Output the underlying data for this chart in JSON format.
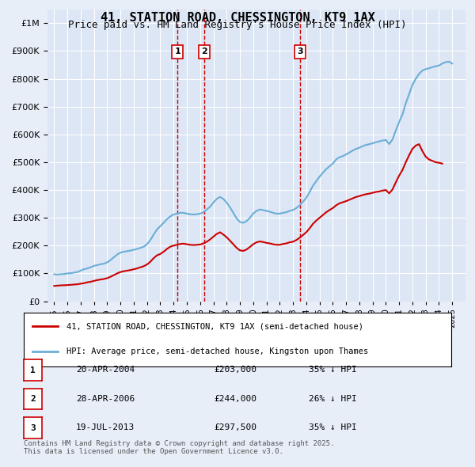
{
  "title": "41, STATION ROAD, CHESSINGTON, KT9 1AX",
  "subtitle": "Price paid vs. HM Land Registry's House Price Index (HPI)",
  "background_color": "#e8eef8",
  "plot_bg_color": "#dce6f5",
  "legend_line1": "41, STATION ROAD, CHESSINGTON, KT9 1AX (semi-detached house)",
  "legend_line2": "HPI: Average price, semi-detached house, Kingston upon Thames",
  "footer": "Contains HM Land Registry data © Crown copyright and database right 2025.\nThis data is licensed under the Open Government Licence v3.0.",
  "transactions": [
    {
      "num": 1,
      "date": "20-APR-2004",
      "price": 203000,
      "hpi_diff": "35% ↓ HPI",
      "year": 2004.3
    },
    {
      "num": 2,
      "date": "28-APR-2006",
      "price": 244000,
      "hpi_diff": "26% ↓ HPI",
      "year": 2006.3
    },
    {
      "num": 3,
      "date": "19-JUL-2013",
      "price": 297500,
      "hpi_diff": "35% ↓ HPI",
      "year": 2013.55
    }
  ],
  "hpi_color": "#6baed6",
  "price_color": "#cc0000",
  "vline_color": "#cc0000",
  "ylim": [
    0,
    1050000
  ],
  "yticks": [
    0,
    100000,
    200000,
    300000,
    400000,
    500000,
    600000,
    700000,
    800000,
    900000,
    1000000
  ],
  "xlim": [
    1994.5,
    2026.0
  ],
  "hpi_data": {
    "years": [
      1995,
      1995.25,
      1995.5,
      1995.75,
      1996,
      1996.25,
      1996.5,
      1996.75,
      1997,
      1997.25,
      1997.5,
      1997.75,
      1998,
      1998.25,
      1998.5,
      1998.75,
      1999,
      1999.25,
      1999.5,
      1999.75,
      2000,
      2000.25,
      2000.5,
      2000.75,
      2001,
      2001.25,
      2001.5,
      2001.75,
      2002,
      2002.25,
      2002.5,
      2002.75,
      2003,
      2003.25,
      2003.5,
      2003.75,
      2004,
      2004.25,
      2004.5,
      2004.75,
      2005,
      2005.25,
      2005.5,
      2005.75,
      2006,
      2006.25,
      2006.5,
      2006.75,
      2007,
      2007.25,
      2007.5,
      2007.75,
      2008,
      2008.25,
      2008.5,
      2008.75,
      2009,
      2009.25,
      2009.5,
      2009.75,
      2010,
      2010.25,
      2010.5,
      2010.75,
      2011,
      2011.25,
      2011.5,
      2011.75,
      2012,
      2012.25,
      2012.5,
      2012.75,
      2013,
      2013.25,
      2013.5,
      2013.75,
      2014,
      2014.25,
      2014.5,
      2014.75,
      2015,
      2015.25,
      2015.5,
      2015.75,
      2016,
      2016.25,
      2016.5,
      2016.75,
      2017,
      2017.25,
      2017.5,
      2017.75,
      2018,
      2018.25,
      2018.5,
      2018.75,
      2019,
      2019.25,
      2019.5,
      2019.75,
      2020,
      2020.25,
      2020.5,
      2020.75,
      2021,
      2021.25,
      2021.5,
      2021.75,
      2022,
      2022.25,
      2022.5,
      2022.75,
      2023,
      2023.25,
      2023.5,
      2023.75,
      2024,
      2024.25,
      2024.5,
      2024.75,
      2025
    ],
    "values": [
      97000,
      96000,
      97000,
      98000,
      100000,
      101000,
      103000,
      105000,
      110000,
      115000,
      118000,
      122000,
      127000,
      130000,
      133000,
      135000,
      140000,
      148000,
      158000,
      168000,
      175000,
      178000,
      180000,
      182000,
      185000,
      188000,
      192000,
      196000,
      205000,
      220000,
      240000,
      258000,
      270000,
      282000,
      295000,
      305000,
      312000,
      315000,
      318000,
      318000,
      315000,
      313000,
      312000,
      313000,
      315000,
      320000,
      330000,
      340000,
      355000,
      368000,
      375000,
      368000,
      355000,
      338000,
      318000,
      298000,
      285000,
      282000,
      288000,
      300000,
      315000,
      325000,
      330000,
      328000,
      325000,
      322000,
      318000,
      315000,
      315000,
      318000,
      320000,
      325000,
      328000,
      335000,
      345000,
      358000,
      372000,
      392000,
      415000,
      432000,
      448000,
      462000,
      475000,
      485000,
      495000,
      510000,
      518000,
      522000,
      528000,
      535000,
      542000,
      548000,
      552000,
      558000,
      562000,
      565000,
      568000,
      572000,
      575000,
      578000,
      580000,
      565000,
      582000,
      615000,
      645000,
      672000,
      712000,
      745000,
      778000,
      800000,
      818000,
      830000,
      835000,
      838000,
      842000,
      845000,
      848000,
      855000,
      860000,
      862000,
      855000
    ]
  },
  "price_data": {
    "years": [
      1995,
      1995.25,
      1995.5,
      1995.75,
      1996,
      1996.25,
      1996.5,
      1996.75,
      1997,
      1997.25,
      1997.5,
      1997.75,
      1998,
      1998.25,
      1998.5,
      1998.75,
      1999,
      1999.25,
      1999.5,
      1999.75,
      2000,
      2000.25,
      2000.5,
      2000.75,
      2001,
      2001.25,
      2001.5,
      2001.75,
      2002,
      2002.25,
      2002.5,
      2002.75,
      2003,
      2003.25,
      2003.5,
      2003.75,
      2004,
      2004.25,
      2004.5,
      2004.75,
      2005,
      2005.25,
      2005.5,
      2005.75,
      2006,
      2006.25,
      2006.5,
      2006.75,
      2007,
      2007.25,
      2007.5,
      2007.75,
      2008,
      2008.25,
      2008.5,
      2008.75,
      2009,
      2009.25,
      2009.5,
      2009.75,
      2010,
      2010.25,
      2010.5,
      2010.75,
      2011,
      2011.25,
      2011.5,
      2011.75,
      2012,
      2012.25,
      2012.5,
      2012.75,
      2013,
      2013.25,
      2013.5,
      2013.75,
      2014,
      2014.25,
      2014.5,
      2014.75,
      2015,
      2015.25,
      2015.5,
      2015.75,
      2016,
      2016.25,
      2016.5,
      2016.75,
      2017,
      2017.25,
      2017.5,
      2017.75,
      2018,
      2018.25,
      2018.5,
      2018.75,
      2019,
      2019.25,
      2019.5,
      2019.75,
      2020,
      2020.25,
      2020.5,
      2020.75,
      2021,
      2021.25,
      2021.5,
      2021.75,
      2022,
      2022.25,
      2022.5,
      2022.75,
      2023,
      2023.25,
      2023.5,
      2023.75,
      2024,
      2024.25
    ],
    "values": [
      55000,
      56000,
      57000,
      57500,
      58000,
      59000,
      60000,
      61000,
      63000,
      65000,
      68000,
      70000,
      73000,
      76000,
      78000,
      80000,
      83000,
      88000,
      94000,
      100000,
      105000,
      108000,
      110000,
      112000,
      115000,
      118000,
      122000,
      126000,
      132000,
      142000,
      155000,
      165000,
      170000,
      178000,
      188000,
      196000,
      200000,
      203000,
      206000,
      207000,
      205000,
      203000,
      202000,
      203000,
      204000,
      208000,
      214000,
      222000,
      232000,
      242000,
      248000,
      240000,
      230000,
      218000,
      205000,
      192000,
      183000,
      181000,
      186000,
      195000,
      205000,
      212000,
      215000,
      213000,
      210000,
      208000,
      205000,
      203000,
      203000,
      206000,
      208000,
      212000,
      214000,
      220000,
      228000,
      238000,
      248000,
      262000,
      278000,
      290000,
      300000,
      310000,
      320000,
      328000,
      335000,
      345000,
      352000,
      356000,
      360000,
      365000,
      370000,
      375000,
      378000,
      382000,
      385000,
      387000,
      390000,
      393000,
      395000,
      398000,
      400000,
      388000,
      402000,
      428000,
      452000,
      472000,
      500000,
      525000,
      548000,
      560000,
      565000,
      540000,
      520000,
      510000,
      505000,
      500000,
      498000,
      495000
    ]
  }
}
